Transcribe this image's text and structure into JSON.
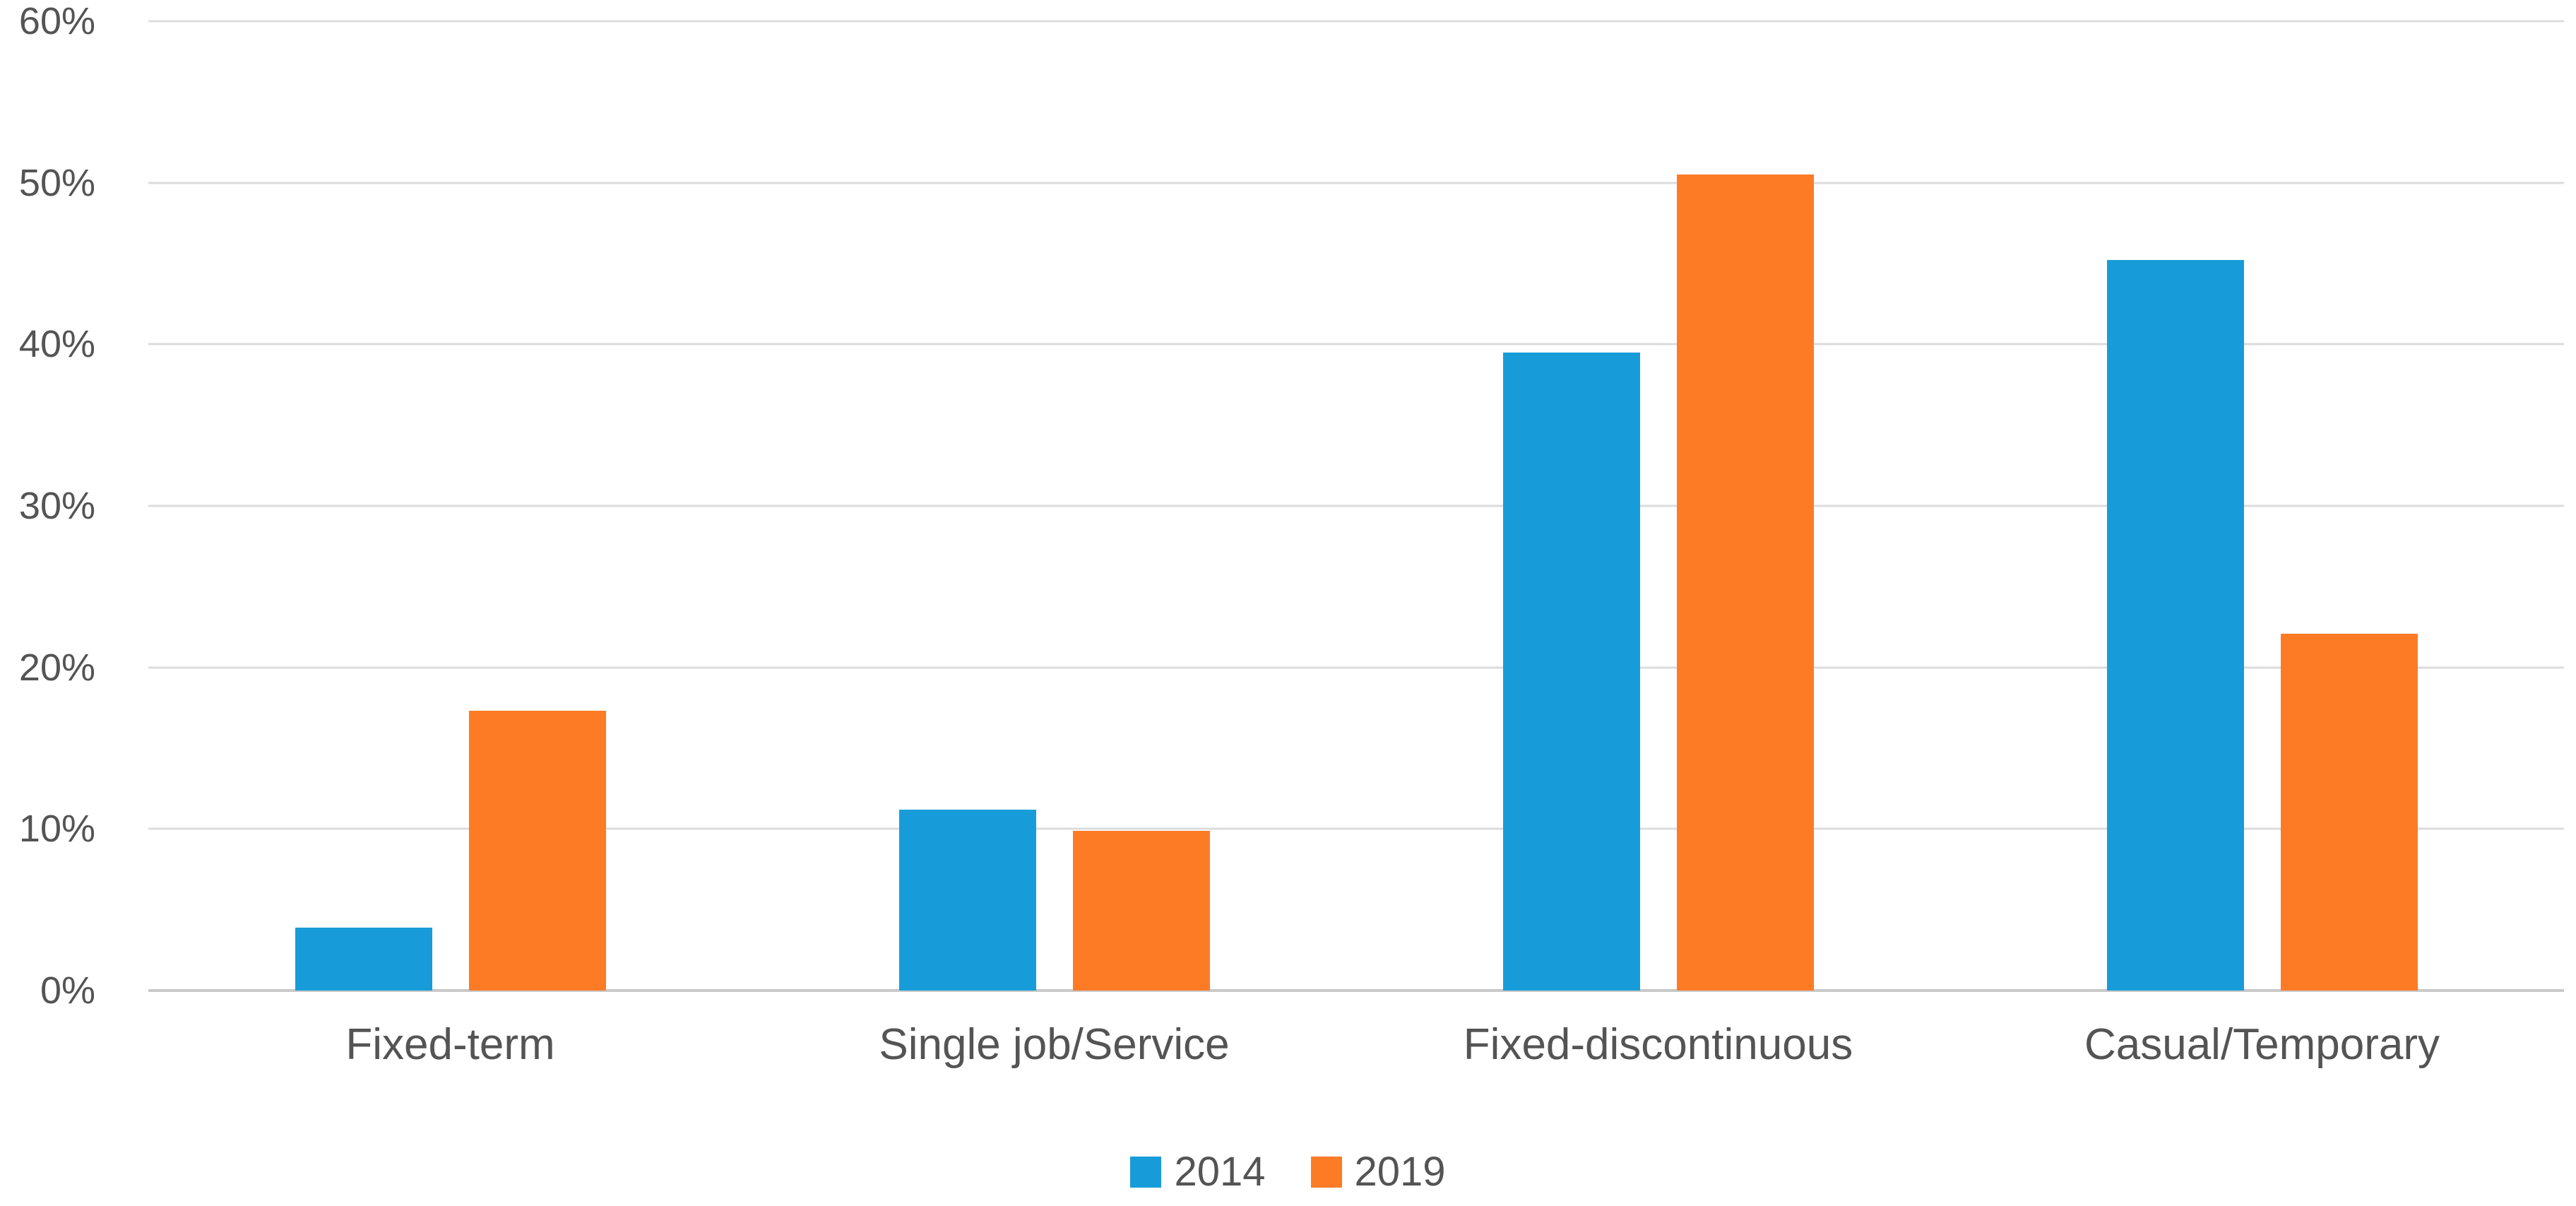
{
  "chart_data": {
    "type": "bar",
    "categories": [
      "Fixed-term",
      "Single job/Service",
      "Fixed-discontinuous",
      "Casual/Temporary"
    ],
    "series": [
      {
        "name": "2014",
        "color": "#189CD9",
        "values": [
          3.9,
          11.2,
          39.5,
          45.2
        ]
      },
      {
        "name": "2019",
        "color": "#FD7B25",
        "values": [
          17.3,
          9.9,
          50.5,
          22.1
        ]
      }
    ],
    "ylim": [
      0,
      60
    ],
    "y_tick_step": 10,
    "y_tick_labels": [
      "0%",
      "10%",
      "20%",
      "30%",
      "40%",
      "50%",
      "60%"
    ],
    "grid": true,
    "legend_position": "bottom"
  },
  "legend": {
    "entries": [
      "2014",
      "2019"
    ]
  },
  "colors": {
    "series_2014": "#189CD9",
    "series_2019": "#FD7B25",
    "gridline": "#DCDCDC",
    "axis_line": "#C9C9C9",
    "text": "#545454",
    "background": "#FFFFFF"
  }
}
